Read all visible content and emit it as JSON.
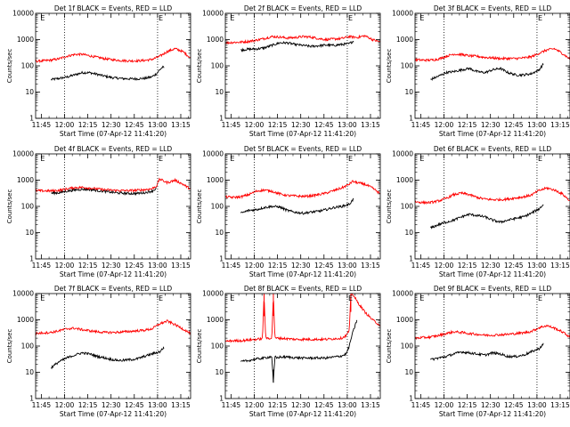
{
  "figure": {
    "xlabel": "Start Time (07-Apr-12 11:41:20)",
    "ylabel": "Counts/sec",
    "x_ticks": [
      "11:45",
      "12:00",
      "12:15",
      "12:30",
      "12:45",
      "13:00",
      "13:15"
    ],
    "y_ticks": [
      "1",
      "10",
      "100",
      "1000",
      "10000"
    ],
    "marker_label": "E",
    "colors": {
      "events": "#000000",
      "lld": "#ff0000",
      "axes": "#000000"
    }
  },
  "chart_data": [
    {
      "type": "line",
      "title": "Det 1f BLACK = Events, RED = LLD",
      "x_unit": "minutes since 11:41:20",
      "xlim": [
        0,
        100
      ],
      "ylim": [
        1,
        10000
      ],
      "y_scale": "log",
      "vlines_dotted": [
        18.7,
        78.7
      ],
      "series": [
        {
          "name": "Events",
          "color": "#000000",
          "x": [
            10,
            15,
            20,
            25,
            30,
            35,
            40,
            45,
            50,
            55,
            60,
            65,
            70,
            75,
            78,
            80,
            82,
            83
          ],
          "y": [
            30,
            33,
            37,
            45,
            55,
            55,
            47,
            40,
            35,
            33,
            32,
            32,
            33,
            38,
            50,
            70,
            90,
            80
          ]
        },
        {
          "name": "LLD",
          "color": "#ff0000",
          "x": [
            0,
            5,
            10,
            15,
            20,
            25,
            30,
            35,
            40,
            45,
            50,
            55,
            60,
            65,
            70,
            75,
            80,
            85,
            90,
            95,
            100
          ],
          "y": [
            150,
            155,
            165,
            185,
            230,
            270,
            275,
            240,
            210,
            185,
            170,
            160,
            155,
            155,
            160,
            175,
            230,
            350,
            450,
            350,
            200
          ]
        }
      ]
    },
    {
      "type": "line",
      "title": "Det 2f BLACK = Events, RED = LLD",
      "x_unit": "minutes since 11:41:20",
      "xlim": [
        0,
        100
      ],
      "ylim": [
        1,
        10000
      ],
      "y_scale": "log",
      "vlines_dotted": [
        18.7,
        78.7
      ],
      "series": [
        {
          "name": "Events",
          "color": "#000000",
          "x": [
            10,
            15,
            20,
            25,
            30,
            35,
            40,
            45,
            50,
            55,
            60,
            65,
            70,
            75,
            80,
            83
          ],
          "y": [
            400,
            430,
            440,
            480,
            600,
            750,
            750,
            650,
            600,
            550,
            580,
            620,
            600,
            650,
            700,
            900
          ]
        },
        {
          "name": "LLD",
          "color": "#ff0000",
          "x": [
            0,
            5,
            10,
            15,
            20,
            25,
            30,
            35,
            40,
            45,
            50,
            55,
            60,
            65,
            70,
            75,
            80,
            85,
            90,
            95,
            100
          ],
          "y": [
            750,
            780,
            800,
            850,
            950,
            1100,
            1300,
            1250,
            1150,
            1200,
            1300,
            1250,
            1100,
            1000,
            1050,
            1100,
            1300,
            1200,
            1400,
            1000,
            800
          ]
        }
      ]
    },
    {
      "type": "line",
      "title": "Det 3f BLACK = Events, RED = LLD",
      "x_unit": "minutes since 11:41:20",
      "xlim": [
        0,
        100
      ],
      "ylim": [
        1,
        10000
      ],
      "y_scale": "log",
      "vlines_dotted": [
        18.7,
        78.7
      ],
      "series": [
        {
          "name": "Events",
          "color": "#000000",
          "x": [
            10,
            15,
            20,
            25,
            30,
            35,
            40,
            45,
            50,
            55,
            60,
            65,
            70,
            75,
            80,
            83
          ],
          "y": [
            30,
            40,
            55,
            60,
            70,
            80,
            60,
            55,
            70,
            80,
            55,
            45,
            45,
            50,
            70,
            120
          ]
        },
        {
          "name": "LLD",
          "color": "#ff0000",
          "x": [
            0,
            5,
            10,
            15,
            20,
            25,
            30,
            35,
            40,
            45,
            50,
            55,
            60,
            65,
            70,
            75,
            80,
            85,
            90,
            95,
            100
          ],
          "y": [
            170,
            165,
            165,
            180,
            230,
            280,
            270,
            240,
            230,
            210,
            200,
            190,
            190,
            190,
            200,
            220,
            300,
            400,
            450,
            300,
            180
          ]
        }
      ]
    },
    {
      "type": "line",
      "title": "Det 4f BLACK = Events, RED = LLD",
      "x_unit": "minutes since 11:41:20",
      "xlim": [
        0,
        100
      ],
      "ylim": [
        1,
        10000
      ],
      "y_scale": "log",
      "vlines_dotted": [
        18.7,
        78.7
      ],
      "series": [
        {
          "name": "Events",
          "color": "#000000",
          "x": [
            10,
            15,
            20,
            25,
            30,
            35,
            40,
            45,
            50,
            55,
            60,
            65,
            70,
            75,
            78
          ],
          "y": [
            320,
            330,
            380,
            420,
            450,
            440,
            400,
            370,
            340,
            320,
            310,
            310,
            330,
            380,
            480
          ]
        },
        {
          "name": "LLD",
          "color": "#ff0000",
          "x": [
            0,
            5,
            10,
            15,
            20,
            25,
            30,
            35,
            40,
            45,
            50,
            55,
            60,
            65,
            70,
            75,
            78,
            80,
            85,
            90,
            95,
            100
          ],
          "y": [
            400,
            390,
            390,
            410,
            460,
            520,
            530,
            500,
            460,
            430,
            410,
            400,
            400,
            410,
            430,
            470,
            600,
            1100,
            800,
            1000,
            700,
            450
          ]
        }
      ]
    },
    {
      "type": "line",
      "title": "Det 5f BLACK = Events, RED = LLD",
      "x_unit": "minutes since 11:41:20",
      "xlim": [
        0,
        100
      ],
      "ylim": [
        1,
        10000
      ],
      "y_scale": "log",
      "vlines_dotted": [
        18.7,
        78.7
      ],
      "series": [
        {
          "name": "Events",
          "color": "#000000",
          "x": [
            10,
            15,
            20,
            25,
            30,
            35,
            40,
            45,
            50,
            55,
            60,
            65,
            70,
            75,
            80,
            83
          ],
          "y": [
            55,
            70,
            75,
            90,
            100,
            95,
            70,
            60,
            55,
            60,
            65,
            75,
            90,
            100,
            120,
            200
          ]
        },
        {
          "name": "LLD",
          "color": "#ff0000",
          "x": [
            0,
            5,
            10,
            15,
            20,
            25,
            30,
            35,
            40,
            45,
            50,
            55,
            60,
            65,
            70,
            75,
            80,
            82,
            85,
            90,
            95,
            100
          ],
          "y": [
            230,
            220,
            230,
            280,
            380,
            420,
            380,
            300,
            260,
            250,
            240,
            250,
            280,
            320,
            400,
            500,
            700,
            900,
            800,
            700,
            500,
            300
          ]
        }
      ]
    },
    {
      "type": "line",
      "title": "Det 6f BLACK = Events, RED = LLD",
      "x_unit": "minutes since 11:41:20",
      "xlim": [
        0,
        100
      ],
      "ylim": [
        1,
        10000
      ],
      "y_scale": "log",
      "vlines_dotted": [
        18.7,
        78.7
      ],
      "series": [
        {
          "name": "Events",
          "color": "#000000",
          "x": [
            10,
            15,
            20,
            25,
            30,
            35,
            40,
            45,
            50,
            55,
            60,
            65,
            70,
            75,
            80,
            83
          ],
          "y": [
            15,
            20,
            25,
            30,
            40,
            50,
            45,
            40,
            30,
            25,
            30,
            35,
            40,
            55,
            80,
            120
          ]
        },
        {
          "name": "LLD",
          "color": "#ff0000",
          "x": [
            0,
            5,
            10,
            15,
            20,
            25,
            30,
            35,
            40,
            45,
            50,
            55,
            60,
            65,
            70,
            75,
            80,
            85,
            90,
            95,
            100
          ],
          "y": [
            150,
            140,
            140,
            160,
            200,
            280,
            320,
            280,
            220,
            190,
            180,
            180,
            190,
            210,
            230,
            270,
            400,
            500,
            420,
            300,
            160
          ]
        }
      ]
    },
    {
      "type": "line",
      "title": "Det 7f BLACK = Events, RED = LLD",
      "x_unit": "minutes since 11:41:20",
      "xlim": [
        0,
        100
      ],
      "ylim": [
        1,
        10000
      ],
      "y_scale": "log",
      "vlines_dotted": [
        18.7,
        78.7
      ],
      "series": [
        {
          "name": "Events",
          "color": "#000000",
          "x": [
            10,
            15,
            20,
            25,
            30,
            35,
            40,
            45,
            50,
            55,
            60,
            65,
            70,
            75,
            80,
            83
          ],
          "y": [
            15,
            25,
            35,
            45,
            55,
            50,
            40,
            35,
            30,
            28,
            30,
            32,
            40,
            50,
            60,
            90
          ]
        },
        {
          "name": "LLD",
          "color": "#ff0000",
          "x": [
            0,
            5,
            10,
            15,
            20,
            25,
            30,
            35,
            40,
            45,
            50,
            55,
            60,
            65,
            70,
            75,
            80,
            85,
            90,
            95,
            100
          ],
          "y": [
            300,
            320,
            330,
            380,
            450,
            480,
            420,
            380,
            350,
            330,
            330,
            340,
            360,
            380,
            400,
            450,
            700,
            900,
            650,
            450,
            300
          ]
        }
      ]
    },
    {
      "type": "line",
      "title": "Det 8f BLACK = Events, RED = LLD",
      "x_unit": "minutes since 11:41:20",
      "xlim": [
        0,
        100
      ],
      "ylim": [
        1,
        10000
      ],
      "y_scale": "log",
      "vlines_dotted": [
        18.7,
        78.7
      ],
      "series": [
        {
          "name": "Events",
          "color": "#000000",
          "x": [
            10,
            15,
            20,
            25,
            30,
            31,
            32,
            33,
            35,
            40,
            45,
            50,
            55,
            60,
            65,
            70,
            75,
            78,
            80,
            82,
            85
          ],
          "y": [
            25,
            28,
            32,
            35,
            40,
            4,
            40,
            35,
            38,
            38,
            36,
            35,
            35,
            35,
            35,
            38,
            42,
            50,
            100,
            300,
            1000
          ]
        },
        {
          "name": "LLD",
          "color": "#ff0000",
          "x": [
            0,
            5,
            10,
            15,
            20,
            24,
            25,
            26,
            30,
            31,
            32,
            35,
            40,
            45,
            50,
            55,
            60,
            65,
            70,
            75,
            78,
            80,
            81,
            82,
            85,
            90,
            95,
            100
          ],
          "y": [
            150,
            160,
            160,
            170,
            180,
            190,
            10000,
            200,
            200,
            10000,
            200,
            200,
            190,
            180,
            180,
            180,
            180,
            180,
            190,
            200,
            250,
            400,
            10000,
            10000,
            5000,
            2000,
            1000,
            600
          ]
        }
      ]
    },
    {
      "type": "line",
      "title": "Det 9f BLACK = Events, RED = LLD",
      "x_unit": "minutes since 11:41:20",
      "xlim": [
        0,
        100
      ],
      "ylim": [
        1,
        10000
      ],
      "y_scale": "log",
      "vlines_dotted": [
        18.7,
        78.7
      ],
      "series": [
        {
          "name": "Events",
          "color": "#000000",
          "x": [
            10,
            15,
            20,
            25,
            30,
            35,
            40,
            45,
            50,
            55,
            60,
            65,
            70,
            75,
            80,
            83
          ],
          "y": [
            30,
            35,
            40,
            50,
            60,
            55,
            50,
            45,
            55,
            50,
            40,
            40,
            45,
            60,
            80,
            120
          ]
        },
        {
          "name": "LLD",
          "color": "#ff0000",
          "x": [
            0,
            5,
            10,
            15,
            20,
            25,
            30,
            35,
            40,
            45,
            50,
            55,
            60,
            65,
            70,
            75,
            80,
            85,
            90,
            95,
            100
          ],
          "y": [
            200,
            210,
            220,
            250,
            300,
            350,
            330,
            300,
            280,
            260,
            260,
            270,
            280,
            300,
            320,
            360,
            500,
            600,
            480,
            350,
            220
          ]
        }
      ]
    }
  ]
}
